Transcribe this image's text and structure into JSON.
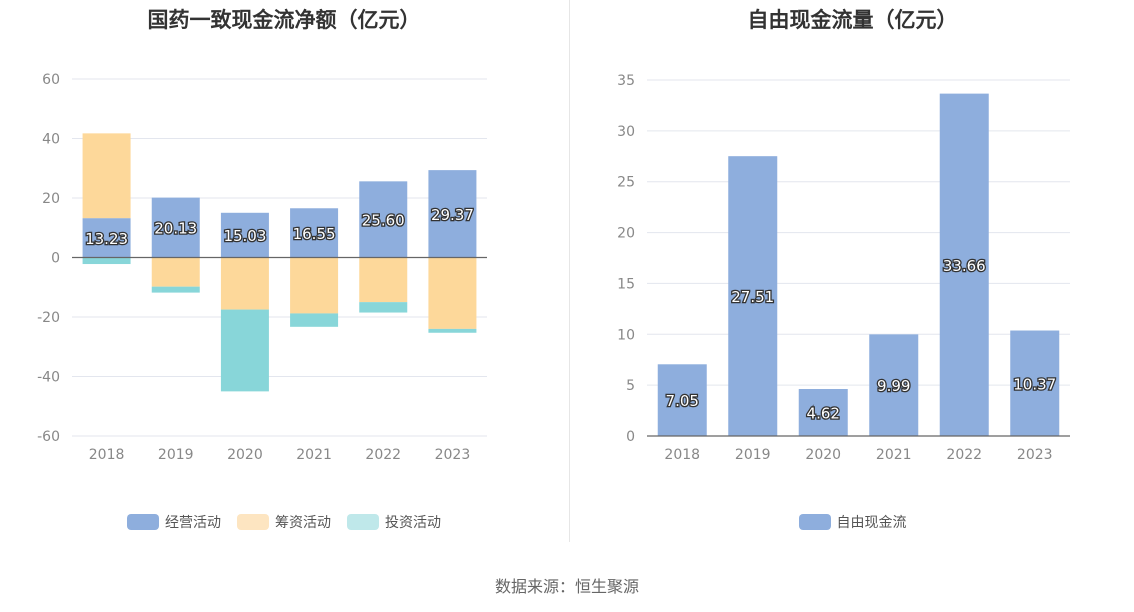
{
  "source": "数据来源：恒生聚源",
  "chart_data": [
    {
      "type": "bar",
      "stacked": true,
      "title": "国药一致现金流净额（亿元）",
      "categories": [
        "2018",
        "2019",
        "2020",
        "2021",
        "2022",
        "2023"
      ],
      "ylim": [
        -60,
        60
      ],
      "yticks": [
        60,
        40,
        20,
        0,
        -20,
        -40,
        -60
      ],
      "grid": true,
      "legend_position": "bottom",
      "series": [
        {
          "name": "经营活动",
          "color": "#8eaedd",
          "legend_color": "#8eaedd",
          "values": [
            13.23,
            20.13,
            15.03,
            16.55,
            25.6,
            29.37
          ],
          "labels": [
            "13.23",
            "20.13",
            "15.03",
            "16.55",
            "25.60",
            "29.37"
          ]
        },
        {
          "name": "筹资活动",
          "color": "#fdd89a",
          "legend_color": "#fde5c1",
          "values": [
            28.5,
            -9.8,
            -17.5,
            -18.8,
            -15.0,
            -24.0
          ]
        },
        {
          "name": "投资活动",
          "color": "#88d6d9",
          "legend_color": "#bfe8ea",
          "values": [
            -2.2,
            -2.0,
            -27.5,
            -4.5,
            -3.5,
            -1.3
          ]
        }
      ]
    },
    {
      "type": "bar",
      "title": "自由现金流量（亿元）",
      "categories": [
        "2018",
        "2019",
        "2020",
        "2021",
        "2022",
        "2023"
      ],
      "ylim": [
        0,
        35
      ],
      "yticks": [
        35,
        30,
        25,
        20,
        15,
        10,
        5,
        0
      ],
      "grid": true,
      "legend_position": "bottom",
      "series": [
        {
          "name": "自由现金流",
          "color": "#8eaedd",
          "legend_color": "#8eaedd",
          "values": [
            7.05,
            27.51,
            4.62,
            9.99,
            33.66,
            10.37
          ],
          "labels": [
            "7.05",
            "27.51",
            "4.62",
            "9.99",
            "33.66",
            "10.37"
          ]
        }
      ]
    }
  ]
}
